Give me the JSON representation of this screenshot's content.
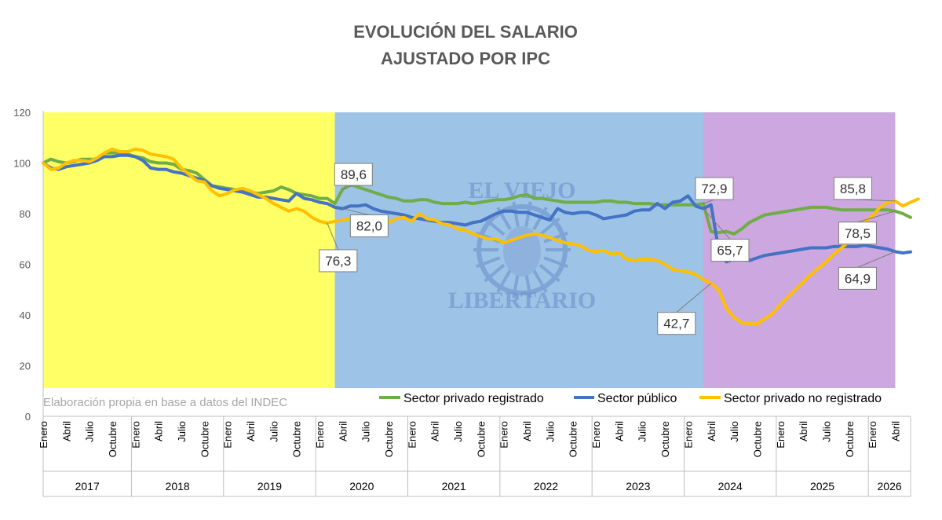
{
  "chart_data": {
    "type": "line",
    "title": [
      "EVOLUCIÓN DEL SALARIO",
      "AJUSTADO POR IPC"
    ],
    "ylim": [
      0,
      120
    ],
    "yticks": [
      0,
      20,
      40,
      60,
      80,
      100,
      120
    ],
    "grid": false,
    "legend_position": "bottom-right",
    "source_note": "Elaboración propia en base a datos del INDEC",
    "watermark": [
      "EL VIEJO",
      "LIBERTARIO"
    ],
    "month_labels": [
      "Enero",
      "Abril",
      "Julio",
      "Octubre"
    ],
    "years": [
      "2017",
      "2018",
      "2019",
      "2020",
      "2021",
      "2022",
      "2023",
      "2024",
      "2025",
      "2026"
    ],
    "background_periods": [
      {
        "from_index": 0,
        "to_index": 38,
        "color": "#ffff66"
      },
      {
        "from_index": 38,
        "to_index": 86,
        "color": "#9dc3e6"
      },
      {
        "from_index": 86,
        "to_index": 111,
        "color": "#cca7e0"
      }
    ],
    "series": [
      {
        "name": "Sector privado registrado",
        "color": "#70ad47",
        "values": [
          100,
          101.5,
          100.5,
          100,
          100.5,
          101.5,
          101.5,
          101.5,
          104,
          104,
          104,
          103.5,
          102.5,
          102,
          100.5,
          100,
          100,
          99.5,
          97.5,
          97,
          96,
          93.5,
          91,
          90.5,
          90,
          89.5,
          89.5,
          88.5,
          88,
          88.5,
          89,
          90.5,
          89.5,
          88,
          87.5,
          87,
          86,
          86,
          84,
          89.6,
          91.5,
          90.5,
          89.5,
          88.5,
          87.5,
          86.5,
          86,
          85,
          85,
          85.5,
          85.5,
          84.5,
          84,
          84,
          84,
          84.5,
          84,
          84.5,
          85,
          85.5,
          85.5,
          86,
          87,
          87.5,
          86,
          86,
          85.5,
          85,
          84.5,
          84.5,
          84.5,
          84.5,
          84.5,
          85,
          85,
          84.5,
          84.5,
          84,
          84,
          84,
          83.5,
          83.5,
          83.5,
          83.5,
          83.5,
          83.5,
          84,
          72.9,
          72.5,
          73,
          72,
          74,
          76.5,
          78,
          79.5,
          80,
          80.5,
          81,
          81.5,
          82,
          82.5,
          82.5,
          82.5,
          82,
          81.5,
          81.5,
          81.5,
          81.5,
          81.5,
          81.5,
          81.5,
          81,
          80,
          78.5
        ]
      },
      {
        "name": "Sector público",
        "color": "#4472c4",
        "values": [
          100,
          98,
          97.5,
          98.5,
          99,
          99.5,
          100,
          101,
          102.5,
          102.5,
          103,
          103,
          102.5,
          101,
          98,
          97.5,
          97.5,
          96.5,
          96,
          95,
          94,
          93,
          91,
          90,
          89.5,
          89,
          88.5,
          87.5,
          86.5,
          86.5,
          86,
          85.5,
          85,
          88,
          86,
          85.5,
          84.5,
          84,
          82.5,
          82,
          83,
          83,
          83.5,
          82,
          81,
          80.5,
          80,
          79.5,
          78.5,
          78,
          77.5,
          77,
          76.5,
          76.5,
          76,
          75.5,
          76.5,
          77,
          78.5,
          80,
          81,
          81,
          80.5,
          80.5,
          79.5,
          78.5,
          77.5,
          82,
          80.5,
          80,
          80.5,
          80.5,
          79.5,
          78,
          78.5,
          79,
          79.5,
          81,
          81.5,
          81.5,
          84,
          82,
          84.5,
          85,
          87,
          83,
          82,
          83.5,
          65.7,
          61,
          62,
          62,
          61.5,
          62.5,
          63.5,
          64,
          64.5,
          65,
          65.5,
          66,
          66.5,
          66.5,
          66.5,
          67,
          67,
          67,
          67,
          67.5,
          67,
          66.5,
          66,
          65,
          64.5,
          64.9
        ]
      },
      {
        "name": "Sector privado no registrado",
        "color": "#ffc000",
        "values": [
          100,
          97.5,
          98,
          100,
          101,
          101,
          100.5,
          102,
          104,
          105.5,
          104.5,
          104.5,
          105.5,
          105,
          103.5,
          103,
          102.5,
          101.5,
          98,
          95.5,
          93,
          92.5,
          89,
          87,
          88,
          89.5,
          90,
          89,
          87.5,
          86,
          84,
          82.5,
          81,
          82,
          81,
          78.5,
          77,
          76.3,
          77,
          77.5,
          78,
          78.5,
          77.5,
          77.5,
          76.5,
          76.5,
          78,
          78.5,
          77,
          80,
          78,
          77.5,
          76,
          75.5,
          74,
          73.5,
          72,
          71,
          70,
          70,
          68.5,
          69.5,
          70.5,
          71.5,
          72,
          71.5,
          70.5,
          69.5,
          68.5,
          68,
          67.5,
          65.5,
          65,
          65.5,
          64,
          64.5,
          62,
          61.5,
          62,
          62,
          61.5,
          60,
          58,
          57.5,
          57,
          56,
          54,
          52.5,
          50,
          42.7,
          39,
          37,
          36.5,
          36.5,
          38.5,
          40.5,
          44,
          47,
          50,
          53,
          56,
          58.5,
          61,
          64,
          66.5,
          69,
          73,
          77,
          79,
          82.5,
          84.5,
          85,
          83,
          84.5,
          85.8
        ]
      }
    ],
    "annotations": [
      {
        "text": "89,6",
        "series": 0,
        "index": 39
      },
      {
        "text": "82,0",
        "series": 1,
        "index": 39
      },
      {
        "text": "76,3",
        "series": 2,
        "index": 37
      },
      {
        "text": "72,9",
        "series": 0,
        "index": 86
      },
      {
        "text": "65,7",
        "series": 1,
        "index": 86
      },
      {
        "text": "42,7",
        "series": 2,
        "index": 87
      },
      {
        "text": "85,8",
        "series": 2,
        "index": 111
      },
      {
        "text": "78,5",
        "series": 0,
        "index": 111
      },
      {
        "text": "64,9",
        "series": 1,
        "index": 111
      }
    ]
  }
}
